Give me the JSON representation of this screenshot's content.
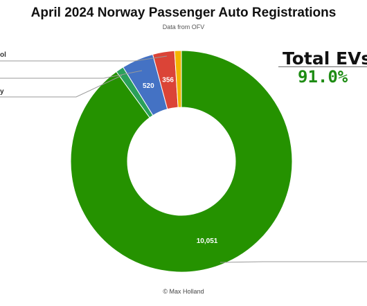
{
  "chart_data": {
    "type": "pie",
    "variant": "donut",
    "title": "April 2024 Norway Passenger Auto Registrations",
    "subtitle": "Data from OFV",
    "slices": [
      {
        "value": 10051,
        "label": "10,051",
        "color": "#259200"
      },
      {
        "value": 130,
        "label": "",
        "color": "#2aa05a"
      },
      {
        "value": 520,
        "label": "520",
        "color": "#4472c4"
      },
      {
        "value": 356,
        "label": "356",
        "color": "#db4437"
      },
      {
        "value": 110,
        "label": "",
        "color": "#f4b400"
      }
    ],
    "partial_legend_labels": [
      "ol",
      "y"
    ],
    "callout": {
      "title": "Total EVs",
      "value": "91.0%",
      "value_color": "#1e8c14"
    },
    "credit": "© Max Holland"
  }
}
